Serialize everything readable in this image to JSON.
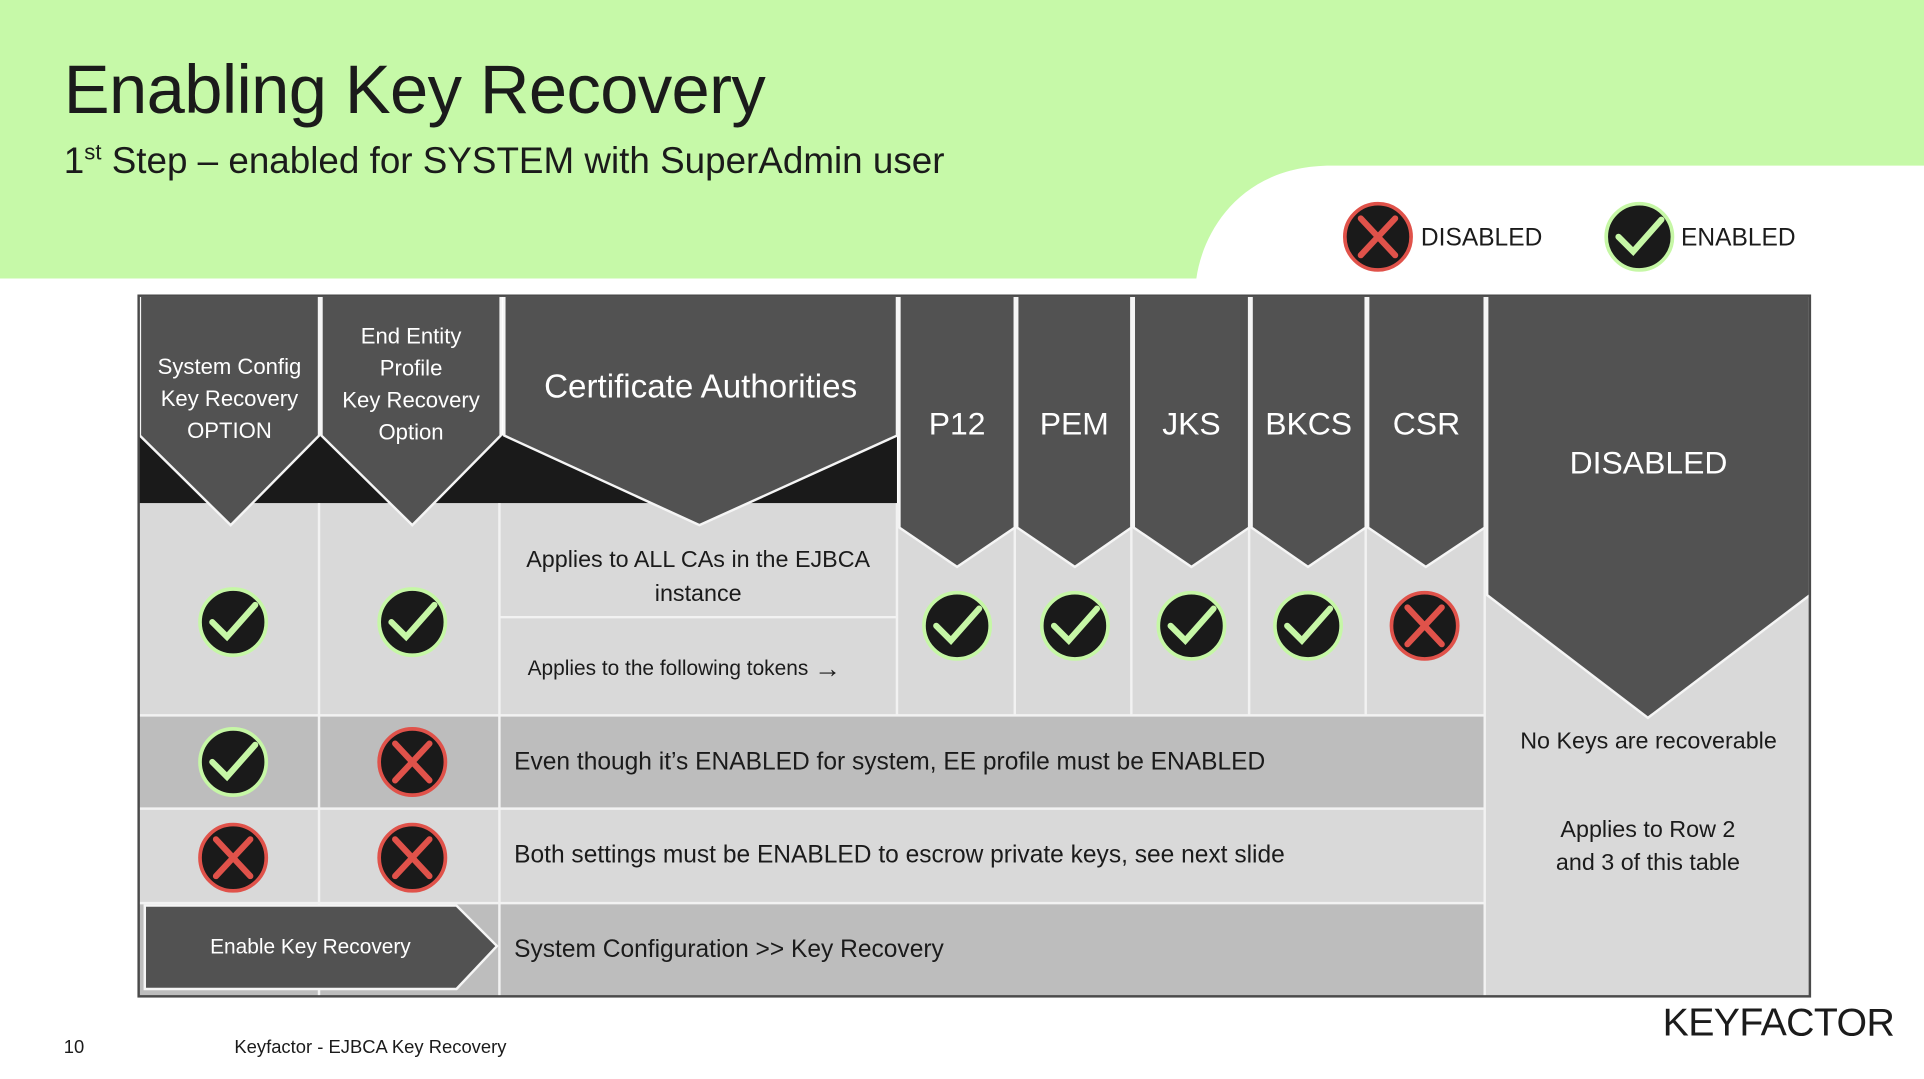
{
  "slide": {
    "title": "Enabling Key Recovery",
    "subtitle_prefix": "1",
    "subtitle_sup": "st",
    "subtitle_rest": " Step – enabled for SYSTEM with SuperAdmin user",
    "page_number": "10",
    "footer_text": "Keyfactor - EJBCA Key Recovery",
    "logo_text": "KEYFACTOR"
  },
  "legend": {
    "disabled_label": "DISABLED",
    "enabled_label": "ENABLED"
  },
  "colors": {
    "header_green": "#c6f9a8",
    "dark_header": "#525252",
    "black_band": "#1a1a1a",
    "light_row": "#d9d9d9",
    "mid_row": "#bdbdbd",
    "enabled_ring": "#c6f7a6",
    "disabled_x": "#e0524a"
  },
  "table": {
    "headers": {
      "system_config": [
        "System Config",
        "Key Recovery",
        "OPTION"
      ],
      "ee_profile": [
        "End Entity",
        "Profile",
        "Key Recovery",
        "Option"
      ],
      "cas": "Certificate Authorities",
      "tokens": [
        "P12",
        "PEM",
        "JKS",
        "BKCS",
        "CSR"
      ],
      "disabled": "DISABLED"
    },
    "row1": {
      "system_config": "enabled",
      "ee_profile": "enabled",
      "ca_text": "Applies to ALL CAs in the EJBCA instance",
      "tokens_text": "Applies to the following tokens",
      "tokens_arrow": "→",
      "token_states": [
        "enabled",
        "enabled",
        "enabled",
        "enabled",
        "disabled"
      ]
    },
    "row2": {
      "system_config": "enabled",
      "ee_profile": "disabled",
      "text": "Even though it’s ENABLED for system, EE profile must be ENABLED"
    },
    "row3": {
      "system_config": "disabled",
      "ee_profile": "disabled",
      "text": "Both settings must be ENABLED to escrow private keys, see next slide"
    },
    "row4": {
      "button_label": "Enable Key Recovery",
      "text": "System Configuration >> Key Recovery"
    },
    "disabled_column": {
      "note1": "No Keys are recoverable",
      "note2": "Applies to Row 2 and 3 of this table"
    }
  }
}
